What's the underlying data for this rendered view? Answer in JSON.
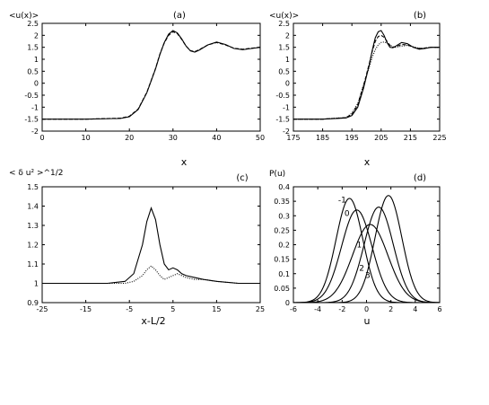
{
  "chart_data": [
    {
      "id": "a",
      "type": "line",
      "panel_label": "(a)",
      "ylabel": "<u(x)>",
      "xlabel": "x",
      "xlim": [
        0,
        50
      ],
      "ylim": [
        -2,
        2.5
      ],
      "xticks": [
        0,
        10,
        20,
        30,
        40,
        50
      ],
      "xtick_labels": [
        "0",
        "10",
        "20",
        "30",
        "40",
        "50"
      ],
      "yticks": [
        -2,
        -1.5,
        -1,
        -0.5,
        0,
        0.5,
        1,
        1.5,
        2,
        2.5
      ],
      "ytick_labels": [
        "-2",
        "-1.5",
        "-1",
        "-0.5",
        "0",
        "0.5",
        "1",
        "1.5",
        "2",
        "2.5"
      ],
      "series": [
        {
          "dash": "solid",
          "x": [
            0,
            10,
            18,
            20,
            22,
            24,
            26,
            27,
            28,
            29,
            30,
            31,
            32,
            33,
            34,
            35,
            36,
            38,
            40,
            42,
            44,
            46,
            48,
            50
          ],
          "y": [
            -1.5,
            -1.5,
            -1.47,
            -1.4,
            -1.1,
            -0.4,
            0.6,
            1.2,
            1.7,
            2.05,
            2.2,
            2.1,
            1.85,
            1.55,
            1.35,
            1.3,
            1.38,
            1.6,
            1.72,
            1.62,
            1.45,
            1.4,
            1.45,
            1.5
          ]
        },
        {
          "dash": "dashed",
          "x": [
            0,
            10,
            18,
            20,
            22,
            24,
            26,
            27,
            28,
            29,
            30,
            31,
            32,
            33,
            34,
            35,
            36,
            38,
            40,
            42,
            44,
            46,
            48,
            50
          ],
          "y": [
            -1.5,
            -1.5,
            -1.46,
            -1.38,
            -1.08,
            -0.38,
            0.62,
            1.22,
            1.68,
            2.0,
            2.15,
            2.07,
            1.83,
            1.55,
            1.36,
            1.32,
            1.4,
            1.6,
            1.7,
            1.6,
            1.46,
            1.42,
            1.46,
            1.5
          ]
        }
      ]
    },
    {
      "id": "b",
      "type": "line",
      "panel_label": "(b)",
      "ylabel": "<u(x)>",
      "xlabel": "x",
      "xlim": [
        175,
        225
      ],
      "ylim": [
        -2,
        2.5
      ],
      "xticks": [
        175,
        185,
        195,
        205,
        215,
        225
      ],
      "xtick_labels": [
        "175",
        "185",
        "195",
        "205",
        "215",
        "225"
      ],
      "yticks": [
        -2,
        -1.5,
        -1,
        -0.5,
        0,
        0.5,
        1,
        1.5,
        2,
        2.5
      ],
      "ytick_labels": [
        "-2",
        "-1.5",
        "-1",
        "-0.5",
        "0",
        "0.5",
        "1",
        "1.5",
        "2",
        "2.5"
      ],
      "series": [
        {
          "dash": "solid",
          "x": [
            175,
            185,
            193,
            195,
            197,
            199,
            201,
            202,
            203,
            204,
            205,
            206,
            207,
            208,
            209,
            210,
            212,
            214,
            216,
            218,
            220,
            222,
            225
          ],
          "y": [
            -1.5,
            -1.5,
            -1.45,
            -1.35,
            -1.0,
            -0.2,
            0.8,
            1.4,
            1.9,
            2.15,
            2.2,
            2.0,
            1.7,
            1.5,
            1.48,
            1.55,
            1.7,
            1.65,
            1.5,
            1.42,
            1.45,
            1.5,
            1.5
          ]
        },
        {
          "dash": "dashed",
          "x": [
            175,
            185,
            193,
            195,
            197,
            199,
            201,
            202,
            203,
            204,
            205,
            206,
            207,
            208,
            209,
            210,
            212,
            214,
            216,
            218,
            220,
            222,
            225
          ],
          "y": [
            -1.5,
            -1.5,
            -1.44,
            -1.3,
            -0.9,
            -0.1,
            0.85,
            1.35,
            1.75,
            1.95,
            2.0,
            1.92,
            1.75,
            1.58,
            1.5,
            1.52,
            1.62,
            1.6,
            1.5,
            1.45,
            1.47,
            1.5,
            1.5
          ]
        },
        {
          "dash": "dotted",
          "x": [
            175,
            185,
            193,
            195,
            197,
            199,
            201,
            202,
            203,
            204,
            205,
            206,
            207,
            208,
            209,
            210,
            212,
            214,
            216,
            218,
            220,
            222,
            225
          ],
          "y": [
            -1.5,
            -1.5,
            -1.43,
            -1.25,
            -0.85,
            -0.05,
            0.7,
            1.1,
            1.4,
            1.6,
            1.7,
            1.72,
            1.68,
            1.6,
            1.52,
            1.5,
            1.55,
            1.58,
            1.52,
            1.46,
            1.47,
            1.5,
            1.5
          ]
        }
      ]
    },
    {
      "id": "c",
      "type": "line",
      "panel_label": "(c)",
      "ylabel": "< δ u² >^1/2",
      "xlabel": "x-L/2",
      "xlim": [
        -25,
        25
      ],
      "ylim": [
        0.9,
        1.5
      ],
      "xticks": [
        -25,
        -15,
        -5,
        5,
        15,
        25
      ],
      "xtick_labels": [
        "-25",
        "-15",
        "-5",
        "5",
        "15",
        "25"
      ],
      "yticks": [
        0.9,
        1.0,
        1.1,
        1.2,
        1.3,
        1.4,
        1.5
      ],
      "ytick_labels": [
        "0.9",
        "1",
        "1.1",
        "1.2",
        "1.3",
        "1.4",
        "1.5"
      ],
      "series": [
        {
          "dash": "solid",
          "x": [
            -25,
            -10,
            -6,
            -4,
            -2,
            -1,
            0,
            1,
            2,
            3,
            4,
            5,
            6,
            7,
            8,
            10,
            12,
            15,
            20,
            25
          ],
          "y": [
            1.0,
            1.0,
            1.01,
            1.05,
            1.2,
            1.32,
            1.39,
            1.33,
            1.2,
            1.1,
            1.07,
            1.08,
            1.07,
            1.05,
            1.04,
            1.03,
            1.02,
            1.01,
            1.0,
            1.0
          ]
        },
        {
          "dash": "dotted",
          "x": [
            -25,
            -10,
            -6,
            -4,
            -2,
            -1,
            0,
            1,
            2,
            3,
            4,
            5,
            6,
            7,
            8,
            10,
            12,
            15,
            20,
            25
          ],
          "y": [
            1.0,
            1.0,
            1.0,
            1.01,
            1.04,
            1.07,
            1.09,
            1.07,
            1.04,
            1.02,
            1.03,
            1.04,
            1.05,
            1.04,
            1.03,
            1.02,
            1.02,
            1.01,
            1.0,
            1.0
          ]
        }
      ]
    },
    {
      "id": "d",
      "type": "line",
      "panel_label": "(d)",
      "ylabel": "P(u)",
      "xlabel": "u",
      "xlim": [
        -6,
        6
      ],
      "ylim": [
        0,
        0.4
      ],
      "xticks": [
        -6,
        -4,
        -2,
        0,
        2,
        4,
        6
      ],
      "xtick_labels": [
        "-6",
        "-4",
        "-2",
        "0",
        "2",
        "4",
        "6"
      ],
      "yticks": [
        0,
        0.05,
        0.1,
        0.15,
        0.2,
        0.25,
        0.3,
        0.35,
        0.4
      ],
      "ytick_labels": [
        "0",
        "0.05",
        "0.1",
        "0.15",
        "0.2",
        "0.25",
        "0.3",
        "0.35",
        "0.4"
      ],
      "series": [
        {
          "label": "-1",
          "mean": -1.4,
          "sigma": 1.1,
          "peak": 0.36,
          "label_at": [
            -2.0,
            0.345
          ]
        },
        {
          "label": "0",
          "mean": -0.8,
          "sigma": 1.25,
          "peak": 0.32,
          "label_at": [
            -1.6,
            0.3
          ]
        },
        {
          "label": "1",
          "mean": 0.3,
          "sigma": 1.45,
          "peak": 0.27,
          "label_at": [
            -0.6,
            0.19
          ]
        },
        {
          "label": "2",
          "mean": 1.0,
          "sigma": 1.2,
          "peak": 0.33,
          "label_at": [
            -0.4,
            0.11
          ]
        },
        {
          "label": "3",
          "mean": 1.8,
          "sigma": 1.1,
          "peak": 0.37,
          "label_at": [
            0.1,
            0.085
          ]
        }
      ]
    }
  ]
}
